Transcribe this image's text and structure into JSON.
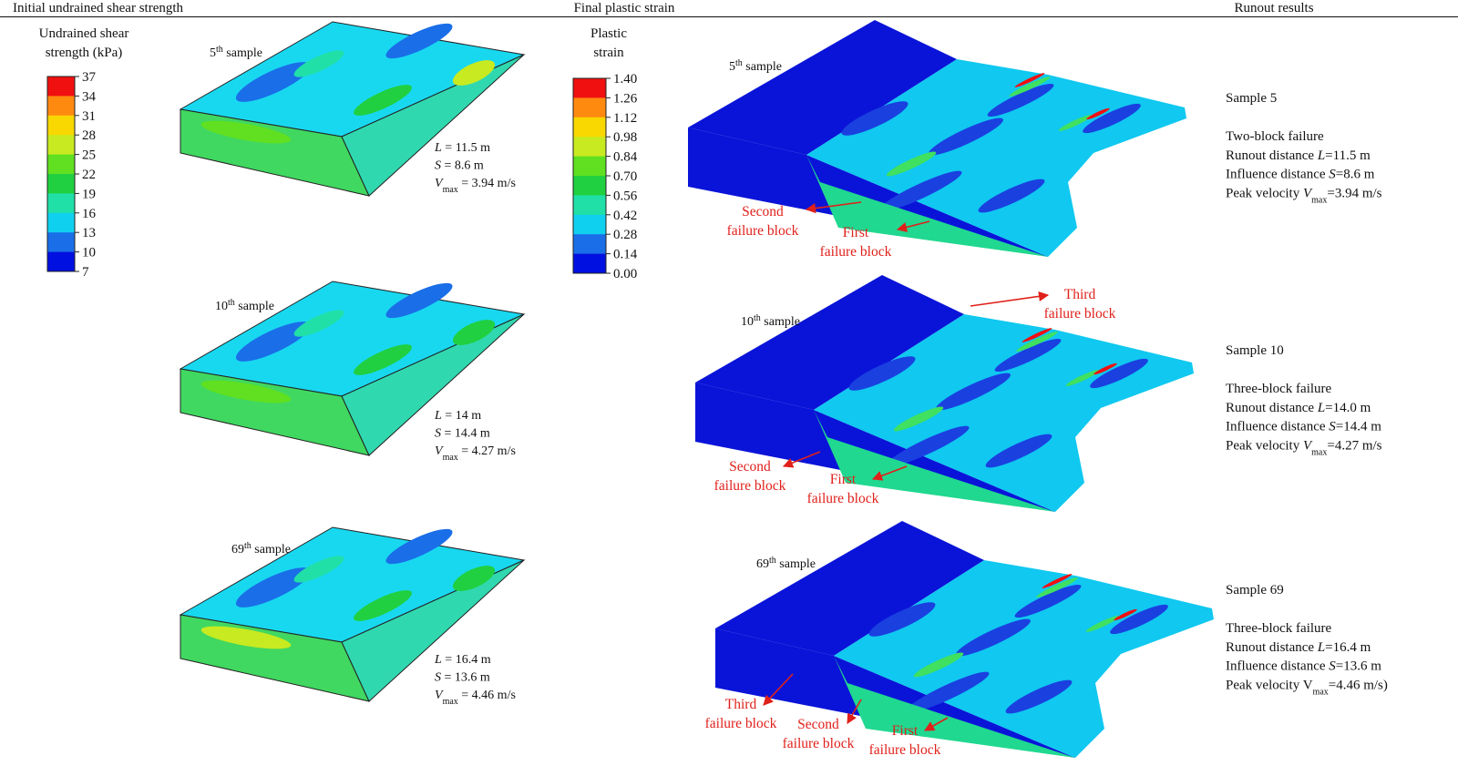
{
  "headers": [
    "Initial undrained shear strength",
    "Final plastic strain",
    "Runout results"
  ],
  "legends": [
    {
      "title": [
        "Undrained shear",
        "strength (kPa)"
      ],
      "ticks": [
        "37",
        "34",
        "31",
        "28",
        "25",
        "22",
        "19",
        "16",
        "13",
        "10",
        "7"
      ]
    },
    {
      "title": [
        "Plastic",
        "strain"
      ],
      "ticks": [
        "1.40",
        "1.26",
        "1.12",
        "0.98",
        "0.84",
        "0.70",
        "0.56",
        "0.42",
        "0.28",
        "0.14",
        "0.00"
      ]
    }
  ],
  "samples": [
    {
      "label": {
        "number": "5",
        "suffix": "th",
        "text": " sample"
      },
      "stats": [
        {
          "symbol": "L",
          "text": " = 11.5 m"
        },
        {
          "symbol": "S",
          "text": " = 8.6 m"
        },
        {
          "symbol": "V",
          "sub": "max",
          "text": " = 3.94 m/s"
        }
      ],
      "annotations": [
        [
          "Second",
          "failure block"
        ],
        [
          "First",
          "failure block"
        ]
      ],
      "result": {
        "title": "Sample 5",
        "mode": "Two-block failure",
        "lines": [
          {
            "prefix": "Runout distance ",
            "symbol": "L",
            "text": "=11.5 m"
          },
          {
            "prefix": "Influence distance ",
            "symbol": "S",
            "text": "=8.6 m"
          },
          {
            "prefix": "Peak velocity ",
            "symbol": "V",
            "sub": "max",
            "text": "=3.94 m/s"
          }
        ]
      }
    },
    {
      "label": {
        "number": "10",
        "suffix": "th",
        "text": " sample"
      },
      "stats": [
        {
          "symbol": "L",
          "text": " = 14 m"
        },
        {
          "symbol": "S",
          "text": " = 14.4 m"
        },
        {
          "symbol": "V",
          "sub": "max",
          "text": " = 4.27 m/s"
        }
      ],
      "annotations": [
        [
          "Third",
          "failure block"
        ],
        [
          "Second",
          "failure block"
        ],
        [
          "First",
          "failure block"
        ]
      ],
      "result": {
        "title": "Sample 10",
        "mode": "Three-block failure",
        "lines": [
          {
            "prefix": "Runout distance ",
            "symbol": "L",
            "text": "=14.0 m"
          },
          {
            "prefix": "Influence distance ",
            "symbol": "S",
            "text": "=14.4 m"
          },
          {
            "prefix": "Peak velocity ",
            "symbol": "V",
            "sub": "max",
            "text": "=4.27 m/s"
          }
        ]
      }
    },
    {
      "label": {
        "number": "69",
        "suffix": "th",
        "text": " sample"
      },
      "stats": [
        {
          "symbol": "L",
          "text": " = 16.4 m"
        },
        {
          "symbol": "S",
          "text": " = 13.6 m"
        },
        {
          "symbol": "V",
          "sub": "max",
          "text": " = 4.46 m/s"
        }
      ],
      "annotations": [
        [
          "Third",
          "failure block"
        ],
        [
          "Second",
          "failure block"
        ],
        [
          "First",
          "failure block"
        ]
      ],
      "result": {
        "title": "Sample 69",
        "mode": "Three-block failure",
        "lines": [
          {
            "prefix": "Runout distance ",
            "symbol": "L",
            "text": "=16.4 m"
          },
          {
            "prefix": "Influence distance ",
            "symbol": "S",
            "text": "=13.6 m"
          },
          {
            "prefix": "Peak velocity V",
            "sub": "max",
            "text": "=4.46 m/s)"
          }
        ]
      }
    }
  ]
}
